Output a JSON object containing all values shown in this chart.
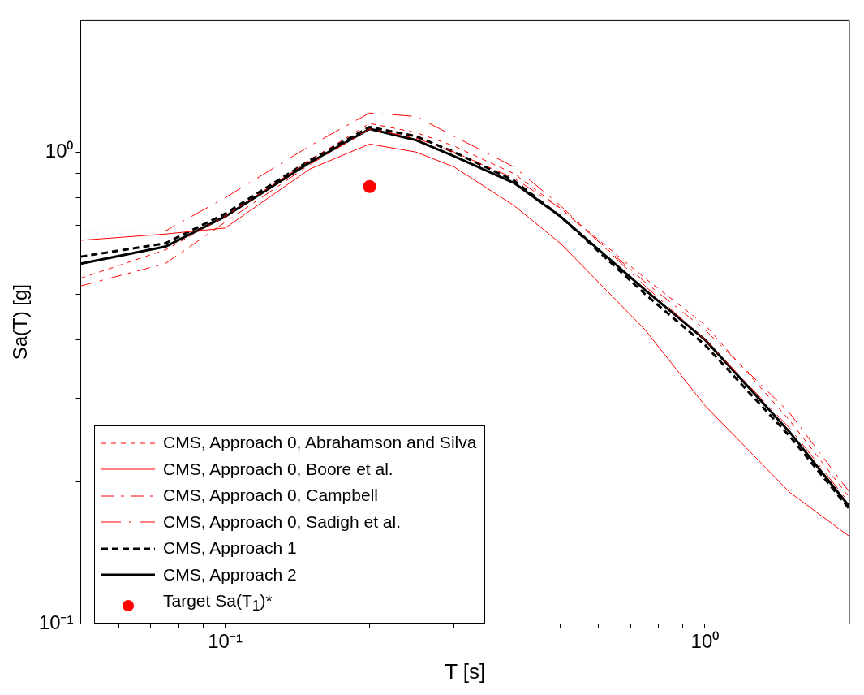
{
  "chart_data": {
    "type": "line",
    "xlabel": "T [s]",
    "ylabel": "Sa(T) [g]",
    "log": "xy",
    "xlim": [
      0.05,
      2
    ],
    "ylim": [
      0.1,
      1.9
    ],
    "xticks": [
      {
        "value": 0.06,
        "label": null
      },
      {
        "value": 0.07,
        "label": null
      },
      {
        "value": 0.08,
        "label": null
      },
      {
        "value": 0.09,
        "label": null
      },
      {
        "value": 0.1,
        "label": "10⁻¹"
      },
      {
        "value": 0.2,
        "label": null
      },
      {
        "value": 0.3,
        "label": null
      },
      {
        "value": 0.4,
        "label": null
      },
      {
        "value": 0.5,
        "label": null
      },
      {
        "value": 0.6,
        "label": null
      },
      {
        "value": 0.7,
        "label": null
      },
      {
        "value": 0.8,
        "label": null
      },
      {
        "value": 0.9,
        "label": null
      },
      {
        "value": 1,
        "label": "10⁰"
      }
    ],
    "yticks": [
      {
        "value": 0.1,
        "label": "10⁻¹"
      },
      {
        "value": 0.2,
        "label": null
      },
      {
        "value": 0.3,
        "label": null
      },
      {
        "value": 0.4,
        "label": null
      },
      {
        "value": 0.5,
        "label": null
      },
      {
        "value": 0.6,
        "label": null
      },
      {
        "value": 0.7,
        "label": null
      },
      {
        "value": 0.8,
        "label": null
      },
      {
        "value": 0.9,
        "label": null
      },
      {
        "value": 1,
        "label": "10⁰"
      }
    ],
    "x": [
      0.05,
      0.075,
      0.1,
      0.15,
      0.2,
      0.25,
      0.3,
      0.4,
      0.5,
      0.75,
      1,
      1.5,
      2
    ],
    "grid": false,
    "legend": "bottom left",
    "series": [
      {
        "name": "CMS, Approach 0, Abrahamson and Silva",
        "color": "#ff0000",
        "line_style": "dashed",
        "values": [
          0.54,
          0.62,
          0.73,
          0.96,
          1.15,
          1.1,
          1.03,
          0.9,
          0.76,
          0.54,
          0.43,
          0.27,
          0.185
        ]
      },
      {
        "name": "CMS, Approach 0, Boore et al.",
        "color": "#ff0000",
        "line_style": "solid",
        "values": [
          0.65,
          0.67,
          0.69,
          0.92,
          1.04,
          1.0,
          0.93,
          0.77,
          0.64,
          0.42,
          0.29,
          0.19,
          0.153
        ]
      },
      {
        "name": "CMS, Approach 0, Campbell",
        "color": "#ff0000",
        "line_style": "dashed",
        "values": [
          0.52,
          0.58,
          0.71,
          0.94,
          1.12,
          1.07,
          1.0,
          0.88,
          0.76,
          0.53,
          0.42,
          0.28,
          0.19
        ]
      },
      {
        "name": "CMS, Approach 0, Sadigh et al.",
        "color": "#ff0000",
        "line_style": "dashed",
        "values": [
          0.68,
          0.68,
          0.8,
          1.03,
          1.21,
          1.19,
          1.08,
          0.93,
          0.77,
          0.52,
          0.4,
          0.26,
          0.18
        ]
      },
      {
        "name": "CMS, Approach 1",
        "color": "#000000",
        "line_style": "dashed",
        "values": [
          0.6,
          0.64,
          0.74,
          0.96,
          1.13,
          1.08,
          1.0,
          0.87,
          0.73,
          0.5,
          0.39,
          0.25,
          0.175
        ]
      },
      {
        "name": "CMS, Approach 2",
        "color": "#000000",
        "line_style": "solid",
        "values": [
          0.58,
          0.63,
          0.73,
          0.95,
          1.12,
          1.06,
          0.98,
          0.86,
          0.73,
          0.51,
          0.4,
          0.255,
          0.177
        ]
      },
      {
        "name": "Target Sa(T$_{1}$)*",
        "type": "scatter",
        "marker": "circle",
        "color": "#ff0000",
        "x": [
          0.2
        ],
        "values": [
          0.845
        ]
      }
    ]
  }
}
